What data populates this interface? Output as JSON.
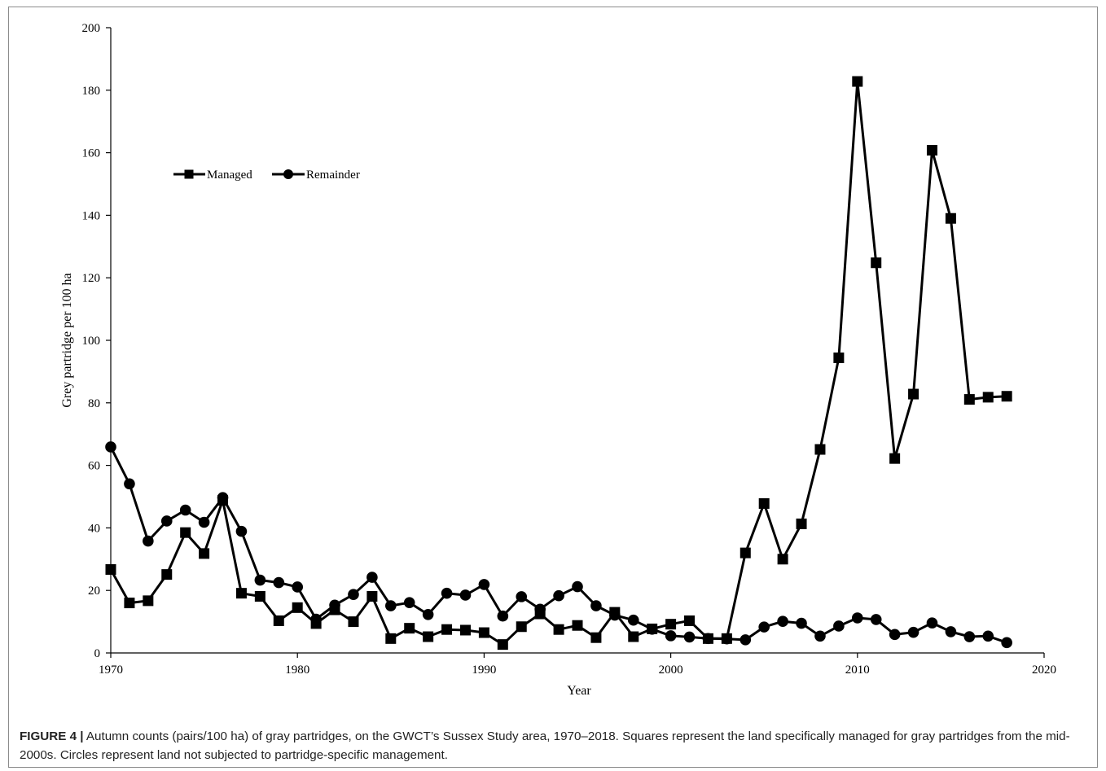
{
  "chart_data": {
    "type": "line",
    "title": "",
    "xlabel": "Year",
    "ylabel": "Grey partridge per 100 ha",
    "xlim": [
      1970,
      2020
    ],
    "ylim": [
      0,
      200
    ],
    "x_ticks": [
      "1970",
      "1980",
      "1990",
      "2000",
      "2010",
      "2020"
    ],
    "y_ticks": [
      "0",
      "20",
      "40",
      "60",
      "80",
      "100",
      "120",
      "140",
      "160",
      "180",
      "200"
    ],
    "legend_position": "upper-left",
    "grid": false,
    "series": [
      {
        "name": "Managed",
        "marker": "square",
        "color": "#000000",
        "x": [
          1970,
          1971,
          1972,
          1973,
          1974,
          1975,
          1976,
          1977,
          1978,
          1979,
          1980,
          1981,
          1982,
          1983,
          1984,
          1985,
          1986,
          1987,
          1988,
          1989,
          1990,
          1991,
          1992,
          1993,
          1994,
          1995,
          1996,
          1997,
          1998,
          1999,
          2000,
          2001,
          2002,
          2003,
          2004,
          2005,
          2006,
          2007,
          2008,
          2009,
          2010,
          2011,
          2012,
          2013,
          2014,
          2015,
          2016,
          2017,
          2018
        ],
        "values": [
          26.7,
          16,
          16.7,
          25.1,
          38.5,
          31.8,
          48.8,
          19.1,
          18.1,
          10.3,
          14.5,
          9.4,
          13.8,
          10,
          18.1,
          4.6,
          7.9,
          5.2,
          7.5,
          7.3,
          6.5,
          2.7,
          8.4,
          12.5,
          7.5,
          8.8,
          4.9,
          13,
          5.2,
          7.7,
          9.2,
          10.3,
          4.6,
          4.6,
          32,
          47.8,
          30,
          41.3,
          65.1,
          94.4,
          182.8,
          124.8,
          62.2,
          82.8,
          160.8,
          139,
          81.1,
          81.8,
          82.1
        ]
      },
      {
        "name": "Remainder",
        "marker": "circle",
        "color": "#000000",
        "x": [
          1970,
          1971,
          1972,
          1973,
          1974,
          1975,
          1976,
          1977,
          1978,
          1979,
          1980,
          1981,
          1982,
          1983,
          1984,
          1985,
          1986,
          1987,
          1988,
          1989,
          1990,
          1991,
          1992,
          1993,
          1994,
          1995,
          1996,
          1997,
          1998,
          1999,
          2000,
          2001,
          2002,
          2003,
          2004,
          2005,
          2006,
          2007,
          2008,
          2009,
          2010,
          2011,
          2012,
          2013,
          2014,
          2015,
          2016,
          2017,
          2018
        ],
        "values": [
          65.9,
          54.1,
          35.8,
          42.2,
          45.7,
          41.8,
          49.7,
          38.9,
          23.3,
          22.5,
          21.1,
          10.8,
          15.3,
          18.7,
          24.2,
          15.1,
          16.1,
          12.3,
          19.1,
          18.5,
          21.9,
          11.8,
          18,
          14,
          18.3,
          21.2,
          15.1,
          12.1,
          10.5,
          7.6,
          5.5,
          5.1,
          4.6,
          4.5,
          4.2,
          8.3,
          10.1,
          9.5,
          5.4,
          8.6,
          11.2,
          10.7,
          5.9,
          6.6,
          9.6,
          6.8,
          5.2,
          5.4,
          3.3
        ]
      }
    ]
  },
  "caption": {
    "label": "FIGURE 4 |",
    "text": "Autumn counts (pairs/100 ha) of gray partridges, on the GWCT’s Sussex Study area, 1970–2018. Squares represent the land specifically managed for gray partridges from the mid-2000s. Circles represent land not subjected to partridge-specific management."
  }
}
